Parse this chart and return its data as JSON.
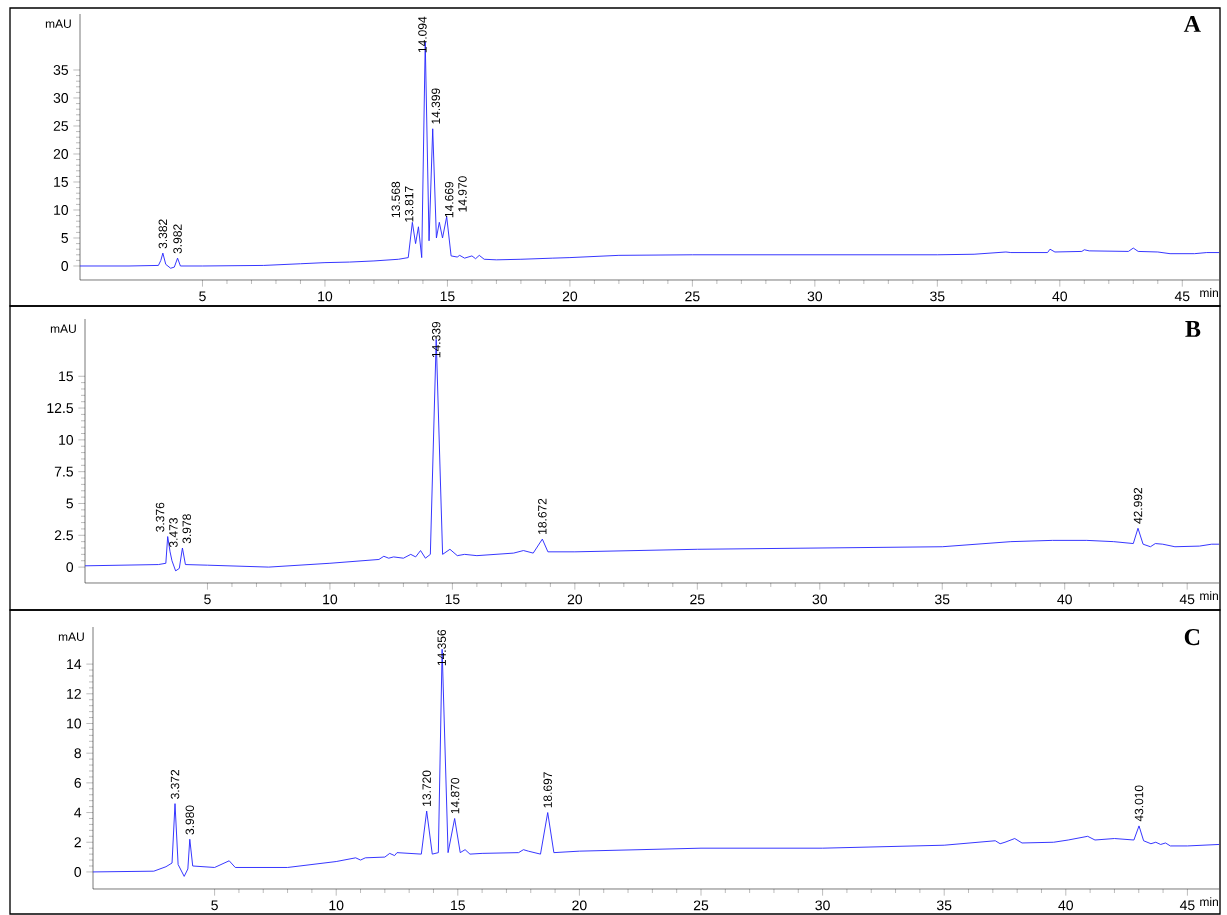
{
  "chart_data": [
    {
      "type": "line",
      "title": "A",
      "xlabel": "min",
      "ylabel": "mAU",
      "xlim": [
        0,
        46.5
      ],
      "ylim": [
        -2.5,
        45
      ],
      "xticks": [
        5,
        10,
        15,
        20,
        25,
        30,
        35,
        40,
        45
      ],
      "yticks": [
        0,
        5,
        10,
        15,
        20,
        25,
        30,
        35
      ],
      "x": [
        0,
        2,
        3.2,
        3.3,
        3.382,
        3.5,
        3.7,
        3.85,
        3.982,
        4.1,
        5,
        7.5,
        9,
        10,
        11,
        12,
        13,
        13.4,
        13.568,
        13.7,
        13.817,
        13.95,
        14.094,
        14.25,
        14.399,
        14.55,
        14.669,
        14.8,
        14.97,
        15.15,
        15.4,
        15.5,
        15.7,
        16,
        16.15,
        16.3,
        16.5,
        17,
        18,
        19.3,
        20,
        22,
        25,
        30,
        35,
        36.5,
        37.8,
        38,
        39.5,
        39.6,
        39.8,
        40.9,
        41,
        41.2,
        42.8,
        43,
        43.2,
        44,
        44.5,
        45.5,
        46,
        46.5
      ],
      "series": [
        {
          "color": "#2828ff",
          "values": [
            0,
            0,
            0.1,
            1.0,
            2.3,
            0.3,
            -0.4,
            -0.2,
            1.4,
            0,
            0,
            0.1,
            0.4,
            0.6,
            0.7,
            0.9,
            1.2,
            1.5,
            7.8,
            4.0,
            7.0,
            1.5,
            40,
            4.5,
            24.5,
            5.0,
            7.8,
            5.0,
            8.8,
            1.8,
            1.6,
            1.9,
            1.4,
            1.8,
            1.3,
            1.9,
            1.2,
            1.1,
            1.2,
            1.4,
            1.5,
            1.9,
            2.0,
            2.0,
            2.0,
            2.1,
            2.5,
            2.4,
            2.4,
            3.0,
            2.5,
            2.6,
            2.9,
            2.7,
            2.6,
            3.2,
            2.6,
            2.5,
            2.2,
            2.2,
            2.4,
            2.4
          ]
        }
      ],
      "annotations": [
        {
          "text": "3.382",
          "x": 3.382,
          "y": 2.3
        },
        {
          "text": "3.982",
          "x": 3.982,
          "y": 1.4
        },
        {
          "text": "13.568",
          "x": 13.568,
          "y": 7.8
        },
        {
          "text": "13.817",
          "x": 13.817,
          "y": 7.0
        },
        {
          "text": "14.094",
          "x": 14.094,
          "y": 40
        },
        {
          "text": "14.399",
          "x": 14.399,
          "y": 24.5
        },
        {
          "text": "14.669",
          "x": 14.669,
          "y": 7.8
        },
        {
          "text": "14.970",
          "x": 14.97,
          "y": 8.8
        }
      ]
    },
    {
      "type": "line",
      "title": "B",
      "xlabel": "min",
      "ylabel": "mAU",
      "xlim": [
        0,
        46.3
      ],
      "ylim": [
        -1.25,
        19.5
      ],
      "xticks": [
        5,
        10,
        15,
        20,
        25,
        30,
        35,
        40,
        45
      ],
      "yticks": [
        0,
        2.5,
        5,
        7.5,
        10,
        12.5,
        15
      ],
      "x": [
        0,
        3.0,
        3.3,
        3.376,
        3.473,
        3.55,
        3.7,
        3.85,
        3.978,
        4.1,
        5,
        7.5,
        10,
        12,
        12.2,
        12.4,
        12.6,
        13,
        13.3,
        13.5,
        13.7,
        13.9,
        14.1,
        14.339,
        14.6,
        14.9,
        15.2,
        15.5,
        16,
        17.5,
        17.9,
        18.3,
        18.672,
        18.9,
        20,
        25,
        35,
        37.8,
        39.5,
        40.9,
        42,
        42.8,
        42.992,
        43.2,
        43.5,
        43.7,
        44,
        44.5,
        45.5,
        46,
        46.3
      ],
      "series": [
        {
          "color": "#2828ff",
          "values": [
            0.1,
            0.2,
            0.3,
            2.4,
            1.2,
            0.5,
            -0.3,
            -0.1,
            1.5,
            0.2,
            0.15,
            0,
            0.3,
            0.6,
            0.85,
            0.7,
            0.8,
            0.7,
            1.0,
            0.8,
            1.3,
            0.7,
            1.0,
            17.9,
            1.0,
            1.4,
            0.9,
            1.0,
            0.9,
            1.1,
            1.3,
            1.1,
            2.2,
            1.2,
            1.2,
            1.4,
            1.6,
            2.0,
            2.1,
            2.1,
            2.0,
            1.85,
            3.05,
            1.8,
            1.6,
            1.85,
            1.8,
            1.6,
            1.65,
            1.8,
            1.8
          ]
        }
      ],
      "annotations": [
        {
          "text": "3.376",
          "x": 3.376,
          "y": 2.4
        },
        {
          "text": "3.473",
          "x": 3.473,
          "y": 1.2
        },
        {
          "text": "3.978",
          "x": 3.978,
          "y": 1.5
        },
        {
          "text": "14.339",
          "x": 14.339,
          "y": 17.9
        },
        {
          "text": "18.672",
          "x": 18.672,
          "y": 2.2
        },
        {
          "text": "42.992",
          "x": 42.992,
          "y": 3.05
        }
      ]
    },
    {
      "type": "line",
      "title": "C",
      "xlabel": "min",
      "ylabel": "mAU",
      "xlim": [
        0,
        46.3
      ],
      "ylim": [
        -1.15,
        16.5
      ],
      "xticks": [
        5,
        10,
        15,
        20,
        25,
        30,
        35,
        40,
        45
      ],
      "yticks": [
        0,
        2,
        4,
        6,
        8,
        10,
        12,
        14
      ],
      "x": [
        0,
        2.5,
        3.0,
        3.25,
        3.372,
        3.5,
        3.75,
        3.9,
        3.98,
        4.1,
        5,
        5.6,
        5.85,
        8,
        10,
        10.8,
        11,
        11.2,
        12,
        12.2,
        12.4,
        12.5,
        13.5,
        13.72,
        13.95,
        14.2,
        14.356,
        14.6,
        14.87,
        15.1,
        15.3,
        15.5,
        16,
        17.5,
        17.7,
        17.9,
        18.4,
        18.697,
        18.95,
        20,
        25,
        30,
        35,
        37.1,
        37.3,
        37.5,
        37.9,
        38.2,
        39.5,
        40.1,
        40.9,
        41.2,
        42,
        42.8,
        43.01,
        43.2,
        43.5,
        43.7,
        43.9,
        44.1,
        44.3,
        45,
        46.3
      ],
      "series": [
        {
          "color": "#2828ff",
          "values": [
            0,
            0.05,
            0.35,
            0.6,
            4.6,
            0.5,
            -0.3,
            0.2,
            2.2,
            0.4,
            0.3,
            0.75,
            0.3,
            0.3,
            0.7,
            0.95,
            0.8,
            0.95,
            1.0,
            1.25,
            1.1,
            1.3,
            1.2,
            4.1,
            1.2,
            1.3,
            15.0,
            1.3,
            3.6,
            1.3,
            1.5,
            1.2,
            1.25,
            1.3,
            1.5,
            1.4,
            1.2,
            4.0,
            1.3,
            1.4,
            1.6,
            1.6,
            1.8,
            2.1,
            1.9,
            2.0,
            2.25,
            1.95,
            2.0,
            2.15,
            2.4,
            2.15,
            2.25,
            2.15,
            3.1,
            2.1,
            1.9,
            2.0,
            1.85,
            1.95,
            1.75,
            1.75,
            1.85
          ]
        }
      ],
      "annotations": [
        {
          "text": "3.372",
          "x": 3.372,
          "y": 4.6
        },
        {
          "text": "3.980",
          "x": 3.98,
          "y": 2.2
        },
        {
          "text": "13.720",
          "x": 13.72,
          "y": 4.1
        },
        {
          "text": "14.356",
          "x": 14.356,
          "y": 15.0
        },
        {
          "text": "14.870",
          "x": 14.87,
          "y": 3.6
        },
        {
          "text": "18.697",
          "x": 18.697,
          "y": 4.0
        },
        {
          "text": "43.010",
          "x": 43.01,
          "y": 3.1
        }
      ]
    }
  ]
}
